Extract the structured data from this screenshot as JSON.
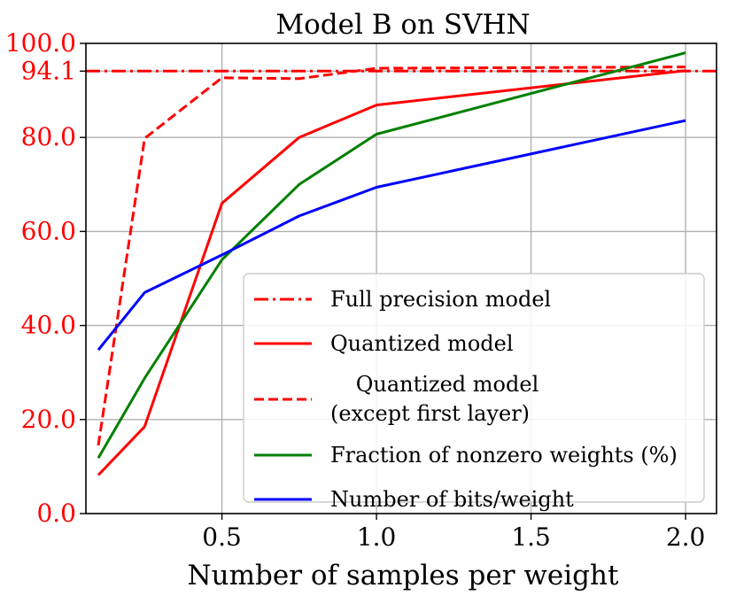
{
  "chart_data": {
    "type": "line",
    "title": "Model B on SVHN",
    "xlabel": "Number of samples per weight",
    "ylabel": "",
    "xlim": [
      0.06,
      2.1
    ],
    "ylim": [
      0,
      100
    ],
    "grid": true,
    "legend_position": "lower-right",
    "x_ticks": [
      {
        "value": 0.5,
        "label": "0.5"
      },
      {
        "value": 1.0,
        "label": "1.0"
      },
      {
        "value": 1.5,
        "label": "1.5"
      },
      {
        "value": 2.0,
        "label": "2.0"
      }
    ],
    "y_ticks": [
      {
        "value": 0,
        "label": "0.0"
      },
      {
        "value": 20,
        "label": "20.0"
      },
      {
        "value": 40,
        "label": "40.0"
      },
      {
        "value": 60,
        "label": "60.0"
      },
      {
        "value": 80,
        "label": "80.0"
      },
      {
        "value": 94.1,
        "label": "94.1"
      },
      {
        "value": 100,
        "label": "100.0"
      }
    ],
    "y_tick_color": "#ff0000",
    "series": [
      {
        "name": "Full precision model",
        "legend_lines": [
          "Full precision model"
        ],
        "color": "#ff0000",
        "style": "dashdot",
        "x": [
          0.06,
          2.1
        ],
        "y": [
          94.1,
          94.1
        ]
      },
      {
        "name": "Quantized model",
        "legend_lines": [
          "Quantized model"
        ],
        "color": "#ff0000",
        "style": "solid",
        "x": [
          0.1,
          0.25,
          0.5,
          0.75,
          1.0,
          2.0
        ],
        "y": [
          8.2,
          18.5,
          66.0,
          80.0,
          86.9,
          94.2
        ]
      },
      {
        "name": "Quantized model (except first layer)",
        "legend_lines": [
          "Quantized model",
          "(except first layer)"
        ],
        "color": "#ff0000",
        "style": "dashed",
        "x": [
          0.1,
          0.25,
          0.5,
          0.75,
          1.0,
          2.0
        ],
        "y": [
          14.5,
          79.8,
          92.7,
          92.5,
          94.7,
          95.0
        ]
      },
      {
        "name": "Fraction of nonzero weights (%)",
        "legend_lines": [
          "Fraction of nonzero weights (%)"
        ],
        "color": "#008000",
        "style": "solid",
        "x": [
          0.1,
          0.25,
          0.5,
          0.75,
          1.0,
          2.0
        ],
        "y": [
          11.8,
          28.8,
          54.0,
          70.0,
          80.7,
          98.0
        ]
      },
      {
        "name": "Number of bits/weight",
        "legend_lines": [
          "Number of bits/weight"
        ],
        "color": "#0000ff",
        "style": "solid",
        "x": [
          0.1,
          0.25,
          0.5,
          0.75,
          1.0,
          2.0
        ],
        "y": [
          34.8,
          47.0,
          55.0,
          63.3,
          69.4,
          83.6
        ]
      }
    ]
  }
}
